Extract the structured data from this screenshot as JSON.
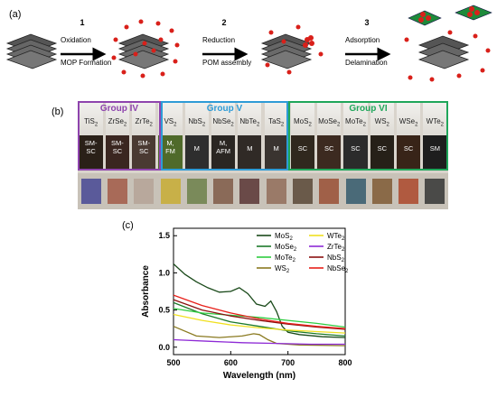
{
  "panels": {
    "a": "(a)",
    "b": "(b)",
    "c": "(c)"
  },
  "steps": [
    {
      "num": "1",
      "line1": "Oxidation",
      "line2": "MOP Formation"
    },
    {
      "num": "2",
      "line1": "Reduction",
      "line2": "POM assembly"
    },
    {
      "num": "3",
      "line1": "Adsorption",
      "line2": "Delamination"
    }
  ],
  "groups": [
    {
      "name": "Group IV",
      "color": "#8e44ad"
    },
    {
      "name": "Group V",
      "color": "#2e9bd6"
    },
    {
      "name": "Group VI",
      "color": "#1fa65a"
    }
  ],
  "vials": [
    {
      "label": "TiS2",
      "type": "SM-\nSC",
      "color": "#2a2018"
    },
    {
      "label": "ZrSe2",
      "type": "SM-\nSC",
      "color": "#3a2620"
    },
    {
      "label": "ZrTe2",
      "type": "SM-\nSC",
      "color": "#4a3a32"
    },
    {
      "label": "VS2",
      "type": "M,\nFM",
      "color": "#4f6a2a"
    },
    {
      "label": "NbS2",
      "type": "M",
      "color": "#2e2e2e"
    },
    {
      "label": "NbSe2",
      "type": "M,\nAFM",
      "color": "#2a2622"
    },
    {
      "label": "NbTe2",
      "type": "M",
      "color": "#302a26"
    },
    {
      "label": "TaS2",
      "type": "M",
      "color": "#3a3430"
    },
    {
      "label": "MoS2",
      "type": "SC",
      "color": "#30281e"
    },
    {
      "label": "MoSe2",
      "type": "SC",
      "color": "#3c2a20"
    },
    {
      "label": "MoTe2",
      "type": "SC",
      "color": "#2b2b2b"
    },
    {
      "label": "WS2",
      "type": "SC",
      "color": "#262018"
    },
    {
      "label": "WSe2",
      "type": "SC",
      "color": "#382418"
    },
    {
      "label": "WTe2",
      "type": "SM",
      "color": "#1e1e1e"
    }
  ],
  "swatch_colors": [
    "#5a5a9a",
    "#a86a58",
    "#b8a89c",
    "#c8b048",
    "#7a8a5a",
    "#8a6a58",
    "#6a4a48",
    "#9a7a68",
    "#6a5a4a",
    "#a06048",
    "#4a6a78",
    "#8a6a48",
    "#b05a40",
    "#4a4a48"
  ],
  "chart_data": {
    "type": "line",
    "xlabel": "Wavelength (nm)",
    "ylabel": "Absorbance",
    "xlim": [
      500,
      800
    ],
    "ylim": [
      -0.1,
      1.6
    ],
    "xticks": [
      500,
      600,
      700,
      800
    ],
    "yticks": [
      0.0,
      0.5,
      1.0,
      1.5
    ],
    "legend_placement": "top-right",
    "series": [
      {
        "name": "MoS2",
        "color": "#1a4a1a",
        "x": [
          500,
          520,
          540,
          560,
          580,
          600,
          615,
          630,
          645,
          660,
          670,
          680,
          690,
          700,
          720,
          760,
          800
        ],
        "y": [
          1.12,
          0.98,
          0.88,
          0.8,
          0.74,
          0.75,
          0.8,
          0.72,
          0.58,
          0.55,
          0.62,
          0.48,
          0.28,
          0.2,
          0.17,
          0.14,
          0.13
        ]
      },
      {
        "name": "MoSe2",
        "color": "#1c7a2a",
        "x": [
          500,
          550,
          600,
          650,
          700,
          750,
          800
        ],
        "y": [
          0.6,
          0.45,
          0.34,
          0.28,
          0.22,
          0.18,
          0.15
        ]
      },
      {
        "name": "MoTe2",
        "color": "#2ecc40",
        "x": [
          500,
          550,
          600,
          650,
          700,
          750,
          800
        ],
        "y": [
          0.52,
          0.46,
          0.43,
          0.4,
          0.36,
          0.32,
          0.27
        ]
      },
      {
        "name": "WS2",
        "color": "#8a7a20",
        "x": [
          500,
          540,
          580,
          620,
          640,
          650,
          665,
          680,
          720,
          800
        ],
        "y": [
          0.28,
          0.15,
          0.13,
          0.15,
          0.18,
          0.17,
          0.1,
          0.05,
          0.03,
          0.02
        ]
      },
      {
        "name": "WTe2",
        "color": "#f0e020",
        "x": [
          500,
          550,
          600,
          650,
          700,
          750,
          800
        ],
        "y": [
          0.44,
          0.36,
          0.3,
          0.26,
          0.23,
          0.21,
          0.19
        ]
      },
      {
        "name": "ZrTe2",
        "color": "#8e2ad6",
        "x": [
          500,
          560,
          620,
          680,
          740,
          800
        ],
        "y": [
          0.1,
          0.08,
          0.06,
          0.05,
          0.04,
          0.04
        ]
      },
      {
        "name": "NbS2",
        "color": "#8a1010",
        "x": [
          500,
          550,
          600,
          650,
          700,
          750,
          800
        ],
        "y": [
          0.64,
          0.5,
          0.42,
          0.36,
          0.31,
          0.27,
          0.24
        ]
      },
      {
        "name": "NbSe2",
        "color": "#e8201a",
        "x": [
          500,
          550,
          600,
          650,
          700,
          750,
          800
        ],
        "y": [
          0.7,
          0.56,
          0.46,
          0.38,
          0.32,
          0.28,
          0.25
        ]
      }
    ]
  }
}
